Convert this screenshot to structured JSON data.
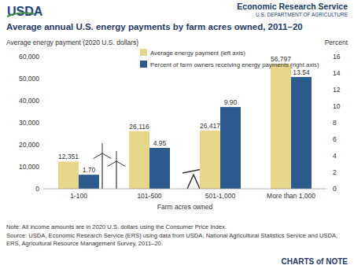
{
  "header": {
    "agency": "USDA",
    "service": "Economic Research Service",
    "department": "U.S. DEPARTMENT OF AGRICULTURE"
  },
  "chart_data": {
    "type": "bar",
    "title": "Average annual U.S. energy payments by farm acres owned, 2011–20",
    "y_label": "Average energy payment (2020 U.S. dollars)",
    "y2_label": "Percent",
    "x_label": "Farm acres owned",
    "categories": [
      "1-100",
      "101-500",
      "501-1,000",
      "More than 1,000"
    ],
    "series": [
      {
        "name": "Average energy payment (left axis)",
        "color": "#e6d68a",
        "values": [
          12351,
          26116,
          26417,
          56797
        ],
        "value_labels": [
          "12,351",
          "26,116",
          "26,417",
          "56,797"
        ]
      },
      {
        "name": "Percent of farm owners receiving energy payments (right axis)",
        "color": "#2e5b8e",
        "axis": "y2",
        "values": [
          1.7,
          4.95,
          9.9,
          13.54
        ],
        "value_labels": [
          "1.70",
          "4.95",
          "9.90",
          "13.54"
        ]
      }
    ],
    "ylim": [
      0,
      60000
    ],
    "yticks": [
      0,
      {
        "value": 10000,
        "label": "10,000"
      },
      {
        "value": 20000,
        "label": "20,000"
      },
      {
        "value": 30000,
        "label": "30,000"
      },
      {
        "value": 40000,
        "label": "40,000"
      },
      {
        "value": 50000,
        "label": "50,000"
      },
      {
        "value": 60000,
        "label": "60,000"
      }
    ],
    "y2lim": [
      0,
      16
    ],
    "y2ticks": [
      0,
      2,
      4,
      6,
      8,
      10,
      12,
      14,
      16
    ],
    "grid": false,
    "legend": "top",
    "data_labels": true
  },
  "notes": {
    "note": "Note: All income amounts are in 2020 U.S. dollars using the Consumer Price Index.",
    "source": "Source: USDA, Economic Research Service (ERS) using data from USDA, National Agricultural Statistics Service and USDA, ERS, Agricultural Resource Management Survey, 2011–20."
  },
  "footer": {
    "brand": "CHARTS of NOTE"
  }
}
